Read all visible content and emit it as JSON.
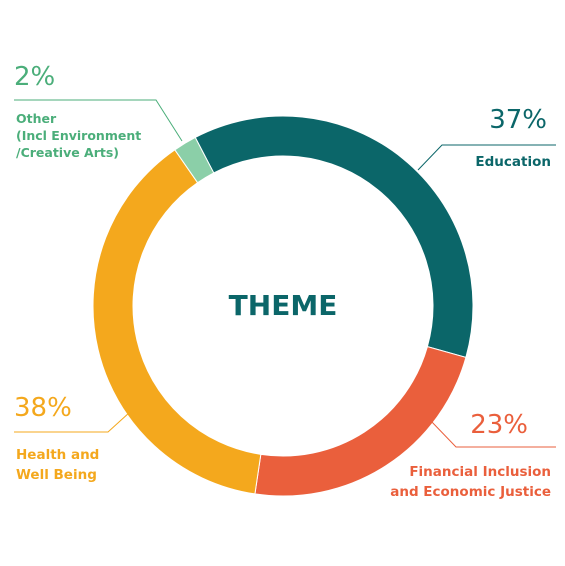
{
  "chart_data": {
    "type": "donut",
    "center_label": "THEME",
    "categories": [
      "Education",
      "Financial Inclusion\nand Economic Justice",
      "Health and\nWell Being",
      "Other\n(Incl Environment\n/Creative Arts)"
    ],
    "values": [
      37,
      23,
      38,
      2
    ],
    "value_labels": [
      "37%",
      "23%",
      "38%",
      "2%"
    ],
    "colors": [
      "#0b6669",
      "#ea5f3c",
      "#f4a81d",
      "#8bcfa8"
    ],
    "label_colors": [
      "#0b6669",
      "#ea5f3c",
      "#f4a81d",
      "#4bae7a"
    ]
  }
}
